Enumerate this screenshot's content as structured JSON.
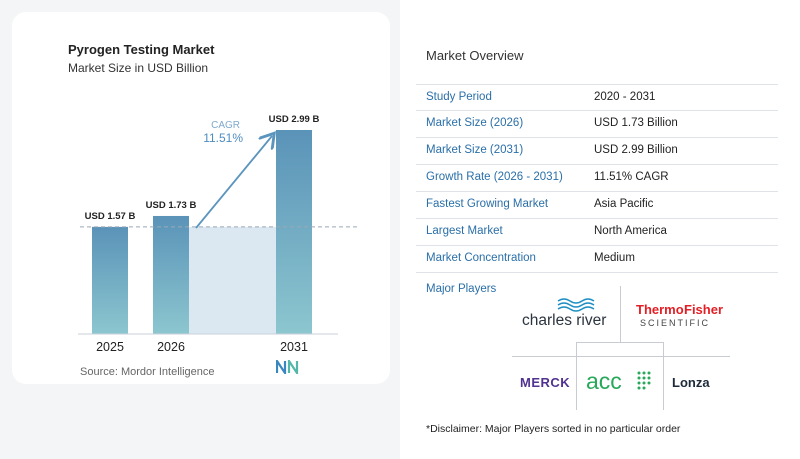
{
  "chart_data": {
    "type": "bar",
    "title": "Pyrogen Testing Market",
    "subtitle": "Market Size in USD Billion",
    "categories": [
      "2025",
      "2026",
      "2031"
    ],
    "values": [
      1.57,
      1.73,
      2.99
    ],
    "value_labels": [
      "USD 1.57 B",
      "USD 1.73 B",
      "USD 2.99 B"
    ],
    "ylim": [
      0,
      3.0
    ],
    "xlabel": "",
    "ylabel": "",
    "cagr_label": "CAGR",
    "cagr_value": "11.51%",
    "grid": false,
    "colors": {
      "bar_top": "#5a93b8",
      "bar_bottom": "#8cc6cf",
      "shade": "#dbe8f2",
      "arrow": "#5b95bd",
      "cagr_text": "#4e8cc0"
    }
  },
  "source": "Source:  Mordor Intelligence",
  "overview": {
    "title": "Market Overview",
    "rows": [
      {
        "key": "Study Period",
        "value": "2020 - 2031"
      },
      {
        "key": "Market Size (2026)",
        "value": "USD 1.73 Billion"
      },
      {
        "key": "Market Size (2031)",
        "value": "USD 2.99 Billion"
      },
      {
        "key": "Growth Rate (2026 - 2031)",
        "value": "11.51% CAGR"
      },
      {
        "key": "Fastest Growing Market",
        "value": "Asia Pacific"
      },
      {
        "key": "Largest Market",
        "value": "North America"
      },
      {
        "key": "Market Concentration",
        "value": "Medium"
      }
    ]
  },
  "players": {
    "label": "Major Players",
    "logos": {
      "charles_river": "charles river",
      "thermo_1": "Thermo",
      "thermo_2": "Fisher",
      "thermo_3": "SCIENTIFIC",
      "merck": "MERCK",
      "acc": "acc",
      "lonza": "Lonza"
    }
  },
  "disclaimer": "*Disclaimer: Major Players sorted in no particular order"
}
